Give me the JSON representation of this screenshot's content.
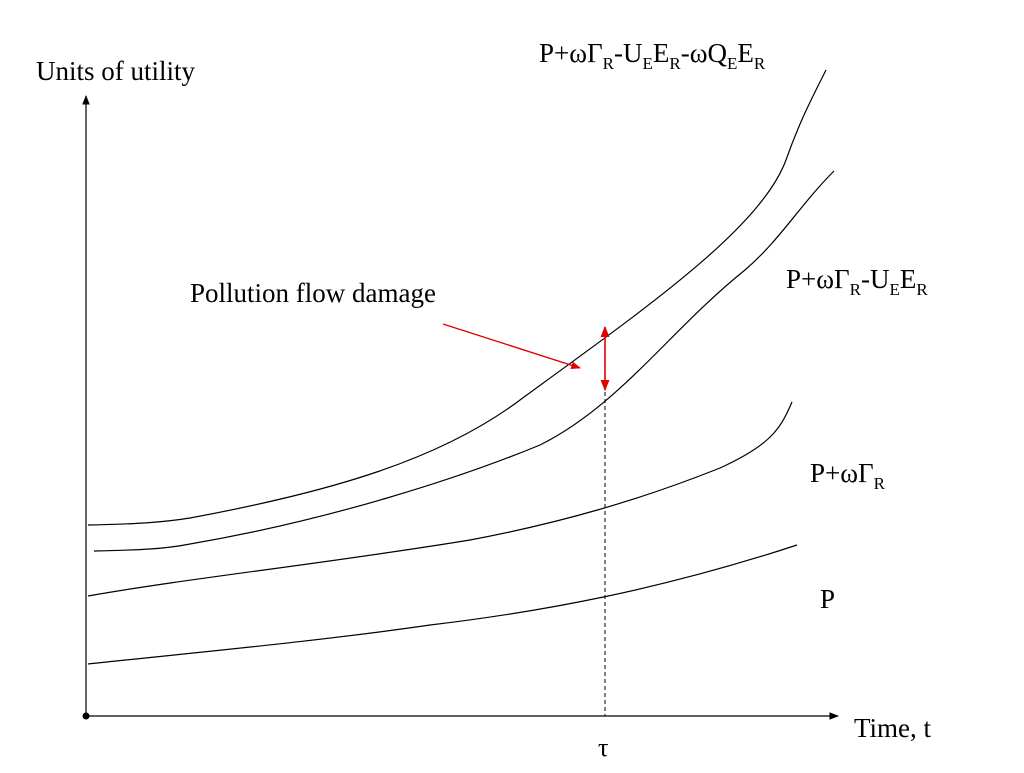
{
  "diagram": {
    "y_axis_label": "Units of utility",
    "x_axis_label": "Time, t",
    "tau_label": "τ",
    "annotation": "Pollution flow damage",
    "annotation_color": "#e00000",
    "curves": [
      {
        "id": "top",
        "label": {
          "base": "P+ωΓ",
          "sub1": "R",
          "mid1": "-U",
          "sub2": "E",
          "mid2": "E",
          "sub3": "R",
          "mid3": "-ωQ",
          "sub4": "E",
          "mid4": "E",
          "sub5": "R"
        }
      },
      {
        "id": "second",
        "label": {
          "base": "P+ωΓ",
          "sub1": "R",
          "mid1": "-U",
          "sub2": "E",
          "mid2": "E",
          "sub3": "R"
        }
      },
      {
        "id": "third",
        "label": {
          "base": "P+ωΓ",
          "sub1": "R"
        }
      },
      {
        "id": "bottom",
        "label": {
          "base": "P"
        }
      }
    ]
  }
}
